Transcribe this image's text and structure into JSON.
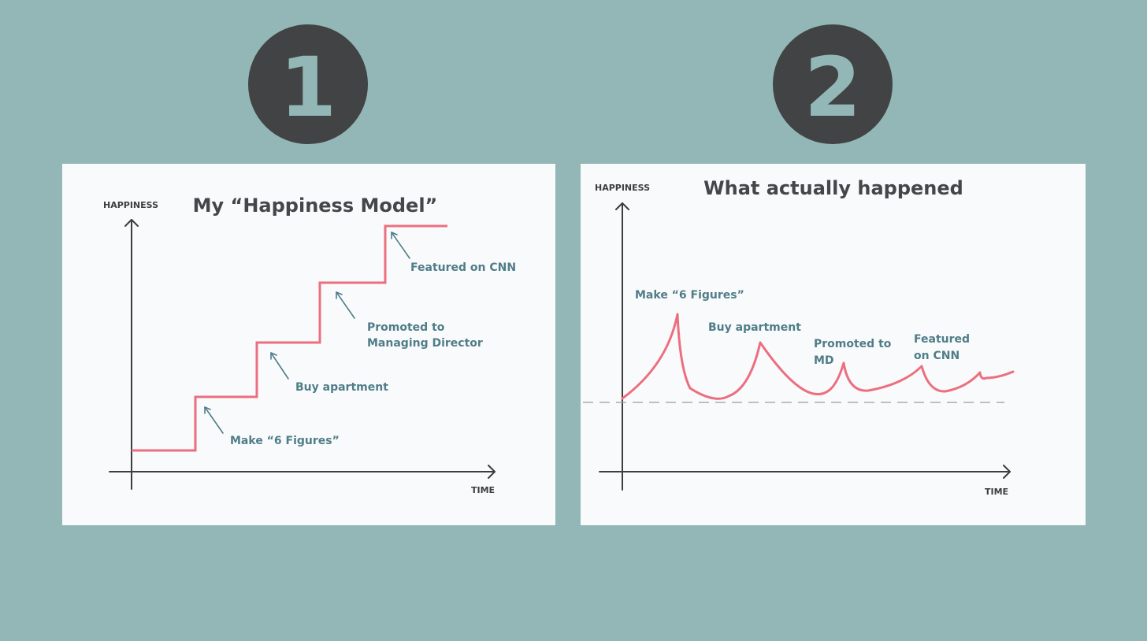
{
  "badges": {
    "left": "1",
    "right": "2"
  },
  "colors": {
    "background": "#93b7b6",
    "badge": "#414345",
    "badge_numeral": "#93b7b6",
    "card": "#f9fafb",
    "curve": "#ec6f80",
    "annotation": "#4f7d88",
    "axis": "#3b3d3f"
  },
  "model_panel": {
    "title": "My “Happiness Model”",
    "y_axis_label": "HAPPINESS",
    "x_axis_label": "TIME",
    "annotations": [
      {
        "lines": [
          "Make “6 Figures”"
        ]
      },
      {
        "lines": [
          "Buy apartment"
        ]
      },
      {
        "lines": [
          "Promoted to",
          "Managing Director"
        ]
      },
      {
        "lines": [
          "Featured on CNN"
        ]
      }
    ]
  },
  "actual_panel": {
    "title": "What actually happened",
    "y_axis_label": "HAPPINESS",
    "x_axis_label": "TIME",
    "annotations": [
      {
        "lines": [
          "Make “6 Figures”"
        ]
      },
      {
        "lines": [
          "Buy apartment"
        ]
      },
      {
        "lines": [
          "Promoted to",
          "MD"
        ]
      },
      {
        "lines": [
          "Featured",
          "on CNN"
        ]
      }
    ]
  }
}
